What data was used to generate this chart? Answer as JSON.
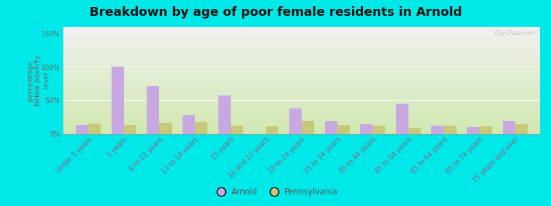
{
  "title": "Breakdown by age of poor female residents in Arnold",
  "ylabel": "percentage\nbelow poverty\nlevel",
  "categories": [
    "Under 5 years",
    "5 years",
    "6 to 11 years",
    "12 to 14 years",
    "15 years",
    "16 and 17 years",
    "18 to 24 years",
    "25 to 34 years",
    "35 to 44 years",
    "45 to 54 years",
    "55 to 64 years",
    "65 to 74 years",
    "75 years and over"
  ],
  "arnold_values": [
    13,
    100,
    72,
    28,
    57,
    0,
    38,
    20,
    14,
    45,
    12,
    10,
    20
  ],
  "pennsylvania_values": [
    15,
    13,
    16,
    17,
    12,
    11,
    19,
    13,
    12,
    9,
    12,
    11,
    14
  ],
  "arnold_color": "#c8a8e0",
  "pennsylvania_color": "#c8c87a",
  "plot_bg_top": "#f0f0ee",
  "plot_bg_bottom": "#d0e8b0",
  "outer_bg": "#00e8e8",
  "yticks": [
    0,
    50,
    100,
    150
  ],
  "ylim": [
    0,
    160
  ],
  "bar_width": 0.35,
  "title_fontsize": 13,
  "tick_fontsize": 7,
  "ylabel_fontsize": 7.5,
  "legend_labels": [
    "Arnold",
    "Pennsylvania"
  ],
  "watermark": "City-Data.com"
}
